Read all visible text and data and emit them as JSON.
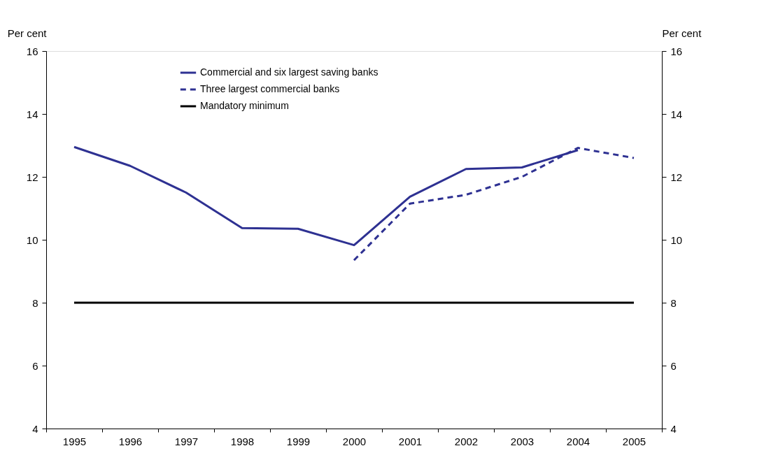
{
  "chart_data": {
    "type": "line",
    "ylabel": "Per cent",
    "y2label": "Per cent",
    "categories": [
      "1995",
      "1996",
      "1997",
      "1998",
      "1999",
      "2000",
      "2001",
      "2002",
      "2003",
      "2004",
      "2005"
    ],
    "series": [
      {
        "name": "Commercial and six largest saving banks",
        "color": "#2e3192",
        "line_style": "solid",
        "values": [
          12.95,
          12.35,
          11.5,
          10.37,
          10.35,
          9.83,
          11.37,
          12.25,
          12.3,
          12.85,
          null
        ]
      },
      {
        "name": "Three largest commercial banks",
        "color": "#2e3192",
        "line_style": "dashed",
        "values": [
          null,
          null,
          null,
          null,
          null,
          9.35,
          11.15,
          11.43,
          12.0,
          12.92,
          12.6
        ]
      },
      {
        "name": "Mandatory minimum",
        "color": "#000000",
        "line_style": "solid",
        "values": [
          8,
          8,
          8,
          8,
          8,
          8,
          8,
          8,
          8,
          8,
          8
        ]
      }
    ],
    "ylim": [
      4,
      16
    ],
    "yticks": [
      4,
      6,
      8,
      10,
      12,
      14,
      16
    ],
    "y2lim": [
      4,
      16
    ],
    "y2ticks": [
      4,
      6,
      8,
      10,
      12,
      14,
      16
    ],
    "grid": false,
    "legend": "top left",
    "marker": "none"
  }
}
